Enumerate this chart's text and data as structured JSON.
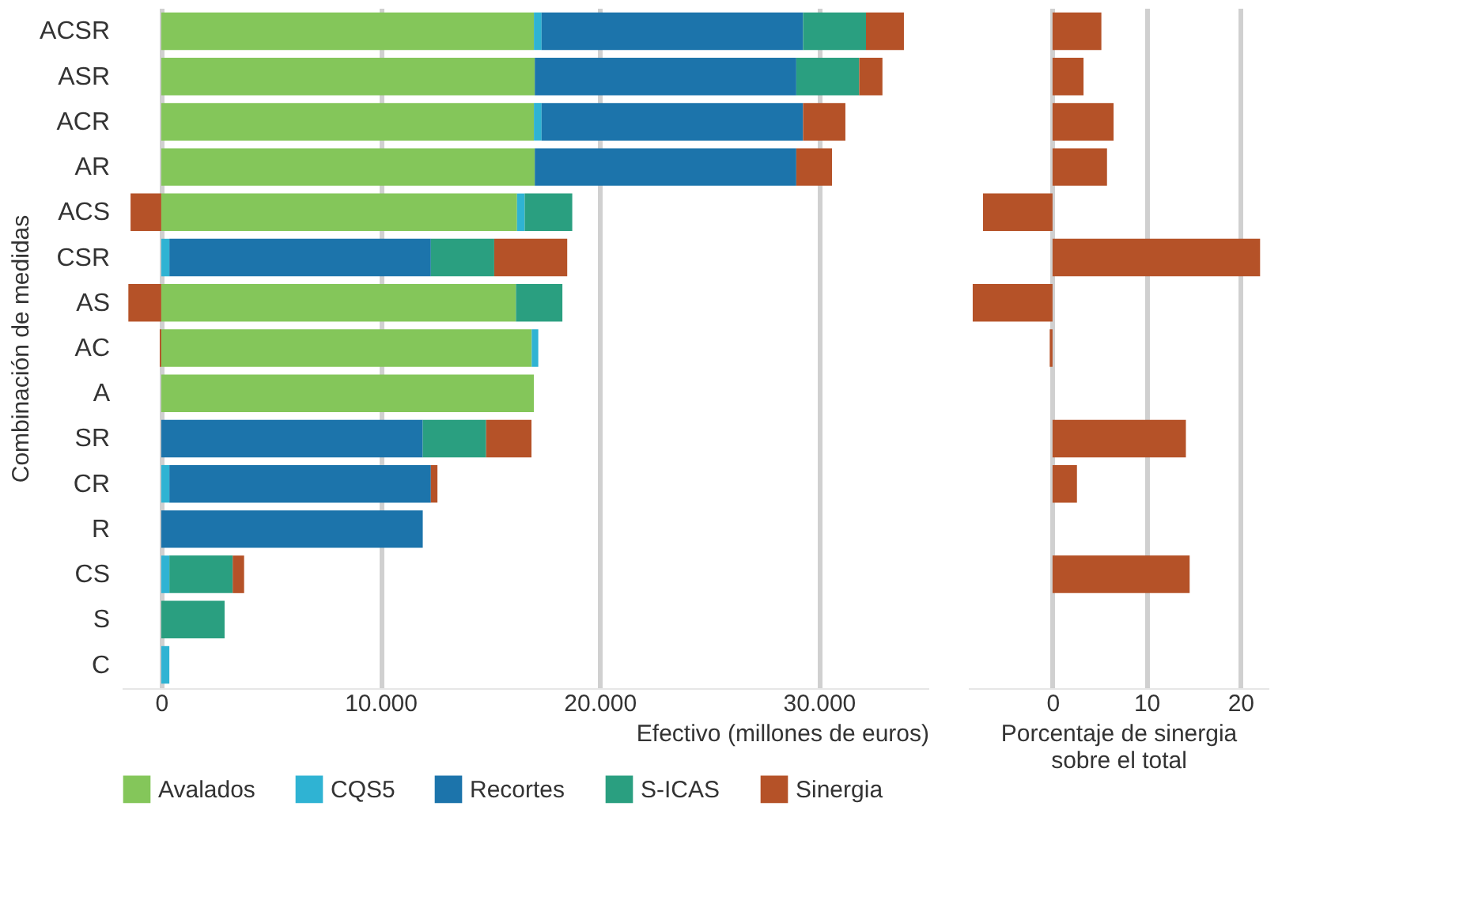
{
  "chart_data": [
    {
      "type": "bar",
      "orientation": "horizontal",
      "stacked": true,
      "ylabel": "Combinación de medidas",
      "xlabel": "Efectivo (millones de euros)",
      "categories": [
        "ACSR",
        "ASR",
        "ACR",
        "AR",
        "ACS",
        "CSR",
        "AS",
        "AC",
        "A",
        "SR",
        "CR",
        "R",
        "CS",
        "S",
        "C"
      ],
      "series": [
        {
          "name": "Avalados",
          "color": "#84c65a",
          "values": [
            17000,
            17040,
            17000,
            17040,
            16230,
            null,
            16180,
            16900,
            17000,
            null,
            null,
            null,
            null,
            null,
            null
          ]
        },
        {
          "name": "CQS5",
          "color": "#2fb3d3",
          "values": [
            350,
            null,
            350,
            null,
            350,
            370,
            null,
            300,
            null,
            null,
            370,
            null,
            370,
            null,
            370
          ]
        },
        {
          "name": "Recortes",
          "color": "#1c74ab",
          "values": [
            11930,
            11930,
            11930,
            11930,
            null,
            11930,
            null,
            null,
            null,
            11930,
            11930,
            11930,
            null,
            null,
            null
          ]
        },
        {
          "name": "S-ICAS",
          "color": "#2a9f80",
          "values": [
            2870,
            2870,
            null,
            null,
            2170,
            2890,
            2120,
            null,
            null,
            2890,
            null,
            null,
            2890,
            2890,
            null
          ]
        },
        {
          "name": "Sinergia",
          "color": "#b55228",
          "values": [
            1730,
            1060,
            1930,
            1630,
            -1400,
            3330,
            -1500,
            -70,
            null,
            2070,
            300,
            null,
            520,
            null,
            null
          ]
        }
      ],
      "xlim": [
        -1800,
        35000
      ],
      "xticks": [
        0,
        {
          "value": 10000,
          "label": "10.000"
        },
        {
          "value": 20000,
          "label": "20.000"
        },
        {
          "value": 30000,
          "label": "30.000"
        }
      ],
      "grid": "x",
      "legend": "bottom"
    },
    {
      "type": "bar",
      "orientation": "horizontal",
      "xlabel": "Porcentaje de sinergia\nsobre el total",
      "categories": [
        null,
        null,
        null,
        null,
        null,
        null,
        null,
        null,
        null,
        null,
        null,
        null,
        null,
        null,
        null
      ],
      "values": [
        5.2,
        3.3,
        6.5,
        5.8,
        -7.4,
        22.1,
        -8.5,
        -0.3,
        0,
        14.2,
        2.6,
        0,
        14.6,
        0,
        0
      ],
      "color": "#b55228",
      "xlim": [
        -9,
        23
      ],
      "xticks": [
        0,
        10,
        20
      ],
      "grid": "x",
      "tick_labels": "x"
    }
  ]
}
